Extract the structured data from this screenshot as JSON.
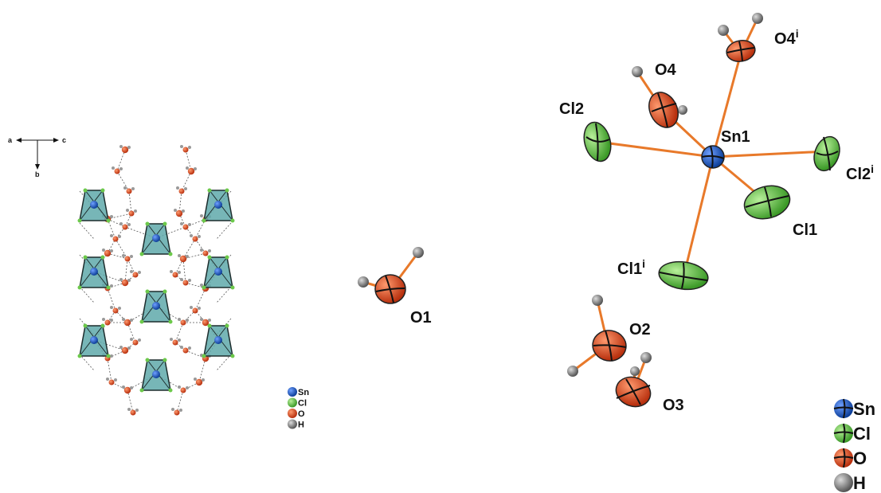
{
  "axes": {
    "a": "a",
    "c": "c",
    "b": "b"
  },
  "legend_left": [
    {
      "symbol": "Sn",
      "color": "#1f5fb8"
    },
    {
      "symbol": "Cl",
      "color": "#6cc94a"
    },
    {
      "symbol": "O",
      "color": "#e0522a"
    },
    {
      "symbol": "H",
      "color": "#707070"
    }
  ],
  "legend_right": [
    {
      "symbol": "Sn",
      "color": "#1f5fb8"
    },
    {
      "symbol": "Cl",
      "color": "#6cc94a"
    },
    {
      "symbol": "O",
      "color": "#e0522a"
    },
    {
      "symbol": "H",
      "color": "#707070"
    }
  ],
  "atoms": {
    "sn1": {
      "base": "Sn1",
      "sup": ""
    },
    "cl1": {
      "base": "Cl1",
      "sup": ""
    },
    "cl1i": {
      "base": "Cl1",
      "sup": "i"
    },
    "cl2": {
      "base": "Cl2",
      "sup": ""
    },
    "cl2i": {
      "base": "Cl2",
      "sup": "i"
    },
    "o1": {
      "base": "O1",
      "sup": ""
    },
    "o2": {
      "base": "O2",
      "sup": ""
    },
    "o3": {
      "base": "O3",
      "sup": ""
    },
    "o4": {
      "base": "O4",
      "sup": ""
    },
    "o4i": {
      "base": "O4",
      "sup": "i"
    }
  },
  "colors": {
    "sn": "#1f5fb8",
    "cl": "#6cc94a",
    "o": "#e0522a",
    "h": "#8a8a8a",
    "bond": "#e87a2a",
    "octahedron": "#5aa8a8"
  }
}
